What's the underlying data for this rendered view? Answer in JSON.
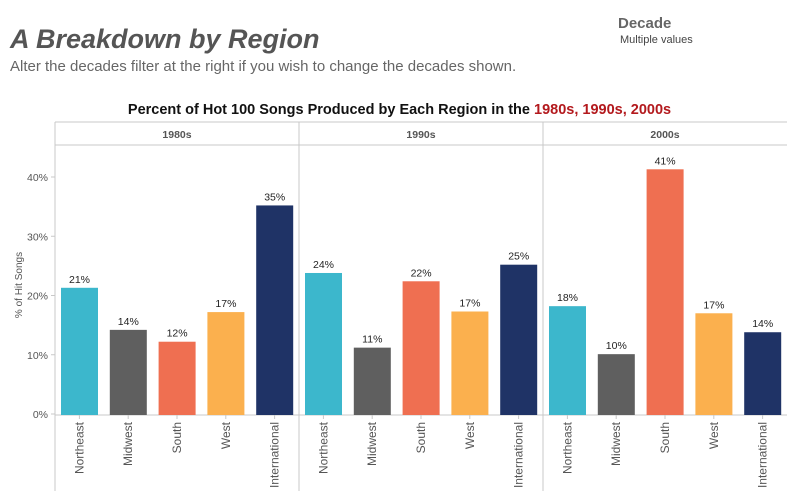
{
  "header": {
    "title": "A Breakdown by Region",
    "subtitle": "Alter the decades filter at the right if you wish to change the decades shown."
  },
  "filter": {
    "title": "Decade",
    "value": "Multiple values"
  },
  "chart_heading": {
    "prefix": "Percent of Hot 100 Songs Produced by Each Region in the ",
    "highlight": "1980s, 1990s, 2000s",
    "highlight_color": "#b3191d"
  },
  "chart_data": {
    "type": "bar",
    "title": "Percent of Hot 100 Songs Produced by Each Region in the 1980s, 1990s, 2000s",
    "ylabel": "% of Hit Songs",
    "xlabel": "",
    "ylim": [
      0,
      46
    ],
    "yticks": [
      0,
      10,
      20,
      30,
      40
    ],
    "ytick_labels": [
      "0%",
      "10%",
      "20%",
      "30%",
      "40%"
    ],
    "grid": false,
    "categories": [
      "Northeast",
      "Midwest",
      "South",
      "West",
      "International"
    ],
    "colors": {
      "Northeast": "#3cb7cc",
      "Midwest": "#5f5f5f",
      "South": "#ef6f51",
      "West": "#fbb04e",
      "International": "#1f3366"
    },
    "panels": [
      {
        "name": "1980s",
        "values": [
          21.3,
          14.2,
          12.2,
          17.2,
          35.2
        ],
        "labels": [
          "21%",
          "14%",
          "12%",
          "17%",
          "35%"
        ]
      },
      {
        "name": "1990s",
        "values": [
          23.8,
          11.2,
          22.4,
          17.3,
          25.2
        ],
        "labels": [
          "24%",
          "11%",
          "22%",
          "17%",
          "25%"
        ]
      },
      {
        "name": "2000s",
        "values": [
          18.2,
          10.1,
          41.3,
          17.0,
          13.8
        ],
        "labels": [
          "18%",
          "10%",
          "41%",
          "17%",
          "14%"
        ]
      }
    ]
  }
}
